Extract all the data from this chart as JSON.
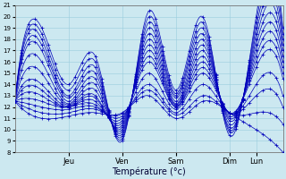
{
  "xlabel": "Température (°c)",
  "bg_color": "#cce8f0",
  "grid_color": "#99ccdd",
  "line_color": "#0000bb",
  "ylim": [
    8,
    21
  ],
  "yticks": [
    8,
    9,
    10,
    11,
    12,
    13,
    14,
    15,
    16,
    17,
    18,
    19,
    20,
    21
  ],
  "xlim": [
    0,
    120
  ],
  "day_ticks": [
    24,
    48,
    72,
    96,
    108
  ],
  "day_labels": [
    "Jeu",
    "Ven",
    "Sam",
    "Dim",
    "Lun"
  ],
  "n_hours": 120,
  "ensemble_members": [
    {
      "amp": [
        3.5,
        4.0,
        4.2,
        4.0
      ],
      "min": [
        11.0,
        9.0,
        9.5,
        8.0
      ],
      "max_end": 19.0
    },
    {
      "amp": [
        3.0,
        3.5,
        3.8,
        3.8
      ],
      "min": [
        11.2,
        9.3,
        9.8,
        9.0
      ],
      "max_end": 18.5
    },
    {
      "amp": [
        2.5,
        3.0,
        3.5,
        3.5
      ],
      "min": [
        11.4,
        9.6,
        10.0,
        10.0
      ],
      "max_end": 18.0
    },
    {
      "amp": [
        2.0,
        2.5,
        3.2,
        3.3
      ],
      "min": [
        11.5,
        9.8,
        10.2,
        10.5
      ],
      "max_end": 17.5
    },
    {
      "amp": [
        1.5,
        2.0,
        2.9,
        3.0
      ],
      "min": [
        11.6,
        10.0,
        10.4,
        11.0
      ],
      "max_end": 17.0
    },
    {
      "amp": [
        1.2,
        1.7,
        2.6,
        2.8
      ],
      "min": [
        11.7,
        10.2,
        10.6,
        11.5
      ],
      "max_end": 16.5
    },
    {
      "amp": [
        1.0,
        1.4,
        2.3,
        2.6
      ],
      "min": [
        11.8,
        10.4,
        10.8,
        12.0
      ],
      "max_end": 16.0
    },
    {
      "amp": [
        0.8,
        1.2,
        2.0,
        2.4
      ],
      "min": [
        11.9,
        10.6,
        11.0,
        12.5
      ],
      "max_end": 15.5
    },
    {
      "amp": [
        0.6,
        1.0,
        1.7,
        2.2
      ],
      "min": [
        12.0,
        10.8,
        11.2,
        13.0
      ],
      "max_end": 15.0
    },
    {
      "amp": [
        0.4,
        0.8,
        1.4,
        2.0
      ],
      "min": [
        12.1,
        11.0,
        11.4,
        13.5
      ],
      "max_end": 14.5
    },
    {
      "amp": [
        0.3,
        0.6,
        1.1,
        1.8
      ],
      "min": [
        12.2,
        11.2,
        11.5,
        14.0
      ],
      "max_end": 14.0
    },
    {
      "amp": [
        0.2,
        0.4,
        0.9,
        1.5
      ],
      "min": [
        12.3,
        11.4,
        11.6,
        14.5
      ],
      "max_end": 13.5
    },
    {
      "amp": [
        0.15,
        0.3,
        0.7,
        1.2
      ],
      "min": [
        12.4,
        11.6,
        11.7,
        15.0
      ],
      "max_end": 13.0
    },
    {
      "amp": [
        0.1,
        0.2,
        0.5,
        1.0
      ],
      "min": [
        12.45,
        11.8,
        11.8,
        15.5
      ],
      "max_end": 12.5
    }
  ]
}
